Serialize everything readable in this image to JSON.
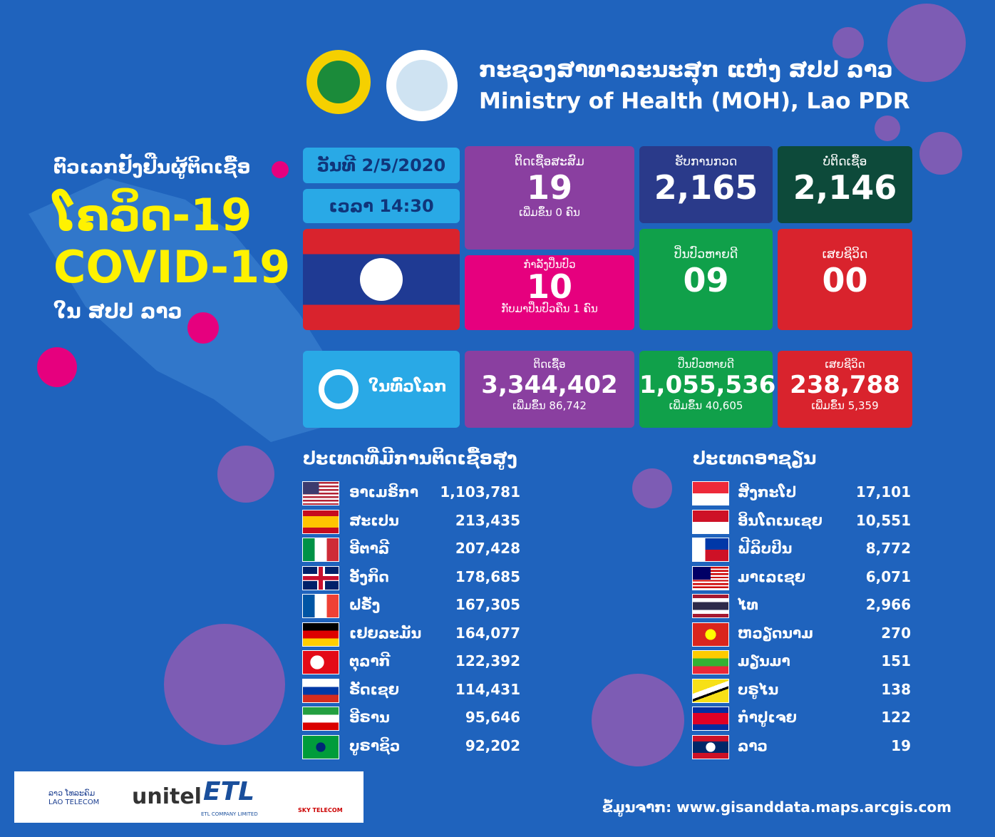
{
  "header": {
    "title_lao": "ກະຊວງສາທາລະນະສຸກ ແຫ່ງ ສປປ ລາວ",
    "title_en": "Ministry of Health (MOH), Lao PDR"
  },
  "headline": {
    "line1": "ຕົວເລກຢັ້ງຢືນຜູ້ຕິດເຊື້ອ",
    "line2": "ໂຄວິດ-19",
    "line3": "COVID-19",
    "line4": "ໃນ ສປປ ລາວ"
  },
  "date": "ວັນທີ 2/5/2020",
  "time": "ເວລາ 14:30",
  "laos": {
    "cumulative": {
      "label": "ຕິດເຊື້ອສະສົມ",
      "value": "19",
      "note": "ເພີ່ມຂຶ້ນ 0 ຄົນ"
    },
    "treatment": {
      "label": "ກຳລັງປິ່ນປົວ",
      "value": "10",
      "note": "ກັບມາປິ່ນປົວຄືນ 1 ຄົນ"
    },
    "tested": {
      "label": "ຮັບການກວດ",
      "value": "2,165"
    },
    "negative": {
      "label": "ບໍ່ຕິດເຊື້ອ",
      "value": "2,146"
    },
    "recovered": {
      "label": "ປິ່ນປົວຫາຍດີ",
      "value": "09"
    },
    "deaths": {
      "label": "ເສຍຊີວິດ",
      "value": "00"
    }
  },
  "world": {
    "label": "ໃນທົ່ວໂລກ",
    "infected": {
      "label": "ຕິດເຊື້ອ",
      "value": "3,344,402",
      "note": "ເພີ່ມຂຶ້ນ 86,742"
    },
    "recovered": {
      "label": "ປິ່ນປົວຫາຍດີ",
      "value": "1,055,536",
      "note": "ເພີ່ມຂຶ້ນ 40,605"
    },
    "deaths": {
      "label": "ເສຍຊີວິດ",
      "value": "238,788",
      "note": "ເພີ່ມຂຶ້ນ 5,359"
    }
  },
  "top_countries": {
    "title": "ປະເທດທີ່ມີການຕິດເຊື້ອສູງ",
    "rows": [
      [
        "ອາເມຣິກາ",
        "1,103,781"
      ],
      [
        "ສະເປນ",
        "213,435"
      ],
      [
        "ອີຕາລີ",
        "207,428"
      ],
      [
        "ອັງກິດ",
        "178,685"
      ],
      [
        "ຝຣັ່ງ",
        "167,305"
      ],
      [
        "ເຢຍລະມັນ",
        "164,077"
      ],
      [
        "ຕຸລາກີ",
        "122,392"
      ],
      [
        "ຣັດເຊຍ",
        "114,431"
      ],
      [
        "ອີຣານ",
        "95,646"
      ],
      [
        "ບູຣາຊິວ",
        "92,202"
      ]
    ]
  },
  "asean": {
    "title": "ປະເທດອາຊຽນ",
    "rows": [
      [
        "ສິງກະໂປ",
        "17,101"
      ],
      [
        "ອິນໂດເນເຊຍ",
        "10,551"
      ],
      [
        "ຟີລິບປິນ",
        "8,772"
      ],
      [
        "ມາເລເຊຍ",
        "6,071"
      ],
      [
        "ໄທ",
        "2,966"
      ],
      [
        "ຫວຽດນາມ",
        "270"
      ],
      [
        "ມຽນມາ",
        "151"
      ],
      [
        "ບຣູໄນ",
        "138"
      ],
      [
        "ກຳປູເຈຍ",
        "122"
      ],
      [
        "ລາວ",
        "19"
      ]
    ]
  },
  "sponsors": {
    "lao_telecom_lao": "ລາວ ໂທລະຄົມ",
    "lao_telecom": "LAO TELECOM",
    "unitel": "unitel",
    "etl": "ETL",
    "etl_full": "ETL COMPANY LIMITED",
    "sky": "SKY TELECOM"
  },
  "source": "ຂໍ້ມູນຈາກ: www.gisanddata.maps.arcgis.com"
}
